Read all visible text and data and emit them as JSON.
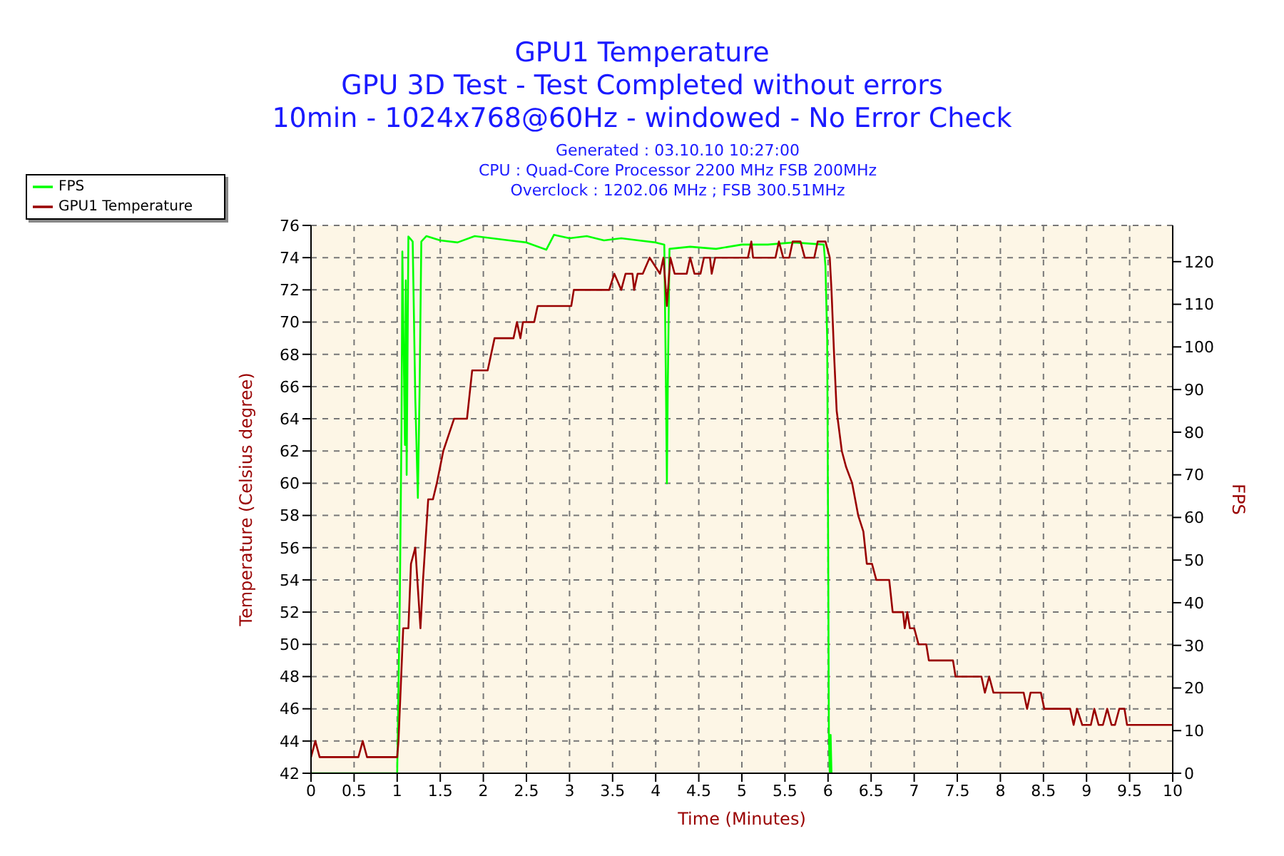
{
  "chart_data": {
    "type": "line",
    "title": "GPU1 Temperature",
    "subtitle": "GPU 3D Test - Test Completed without errors\n10min - 1024x768@60Hz - windowed - No Error Check",
    "annotations": [
      "Generated : 03.10.10 10:27:00",
      "CPU : Quad-Core Processor 2200 MHz FSB 200MHz",
      "Overclock : 1202.06 MHz ; FSB 300.51MHz"
    ],
    "xlabel": "Time (Minutes)",
    "ylabel": "Temperature (Celsius degree)",
    "y2label": "FPS",
    "xlim": [
      0,
      10
    ],
    "xticks": [
      0,
      0.5,
      1,
      1.5,
      2,
      2.5,
      3,
      3.5,
      4,
      4.5,
      5,
      5.5,
      6,
      6.5,
      7,
      7.5,
      8,
      8.5,
      9,
      9.5,
      10
    ],
    "ylim": [
      42,
      76
    ],
    "yticks": [
      42,
      44,
      46,
      48,
      50,
      52,
      54,
      56,
      58,
      60,
      62,
      64,
      66,
      68,
      70,
      72,
      74,
      76
    ],
    "y2lim": [
      0,
      128.5
    ],
    "y2ticks": [
      0,
      10,
      20,
      30,
      40,
      50,
      60,
      70,
      80,
      90,
      100,
      110,
      120
    ],
    "grid": true,
    "legend": "top left",
    "marker": "none",
    "line_style": "solid",
    "series": [
      {
        "name": "FPS",
        "color": "#00ff00",
        "axis": "y2",
        "x": [
          0,
          0.99,
          1.0,
          1.03,
          1.05,
          1.06,
          1.09,
          1.1,
          1.11,
          1.13,
          1.18,
          1.21,
          1.24,
          1.26,
          1.28,
          1.34,
          1.5,
          1.7,
          1.9,
          2.1,
          2.3,
          2.5,
          2.73,
          2.82,
          3.0,
          3.2,
          3.4,
          3.6,
          3.8,
          4.0,
          4.1,
          4.12,
          4.13,
          4.14,
          4.16,
          4.4,
          4.7,
          5.0,
          5.3,
          5.6,
          5.95,
          5.97,
          5.99,
          6.0,
          6.01,
          6.02,
          6.03,
          6.04
        ],
        "values": [
          0,
          0,
          0,
          39.8,
          80.6,
          122.4,
          77,
          115.6,
          70,
          125.9,
          124.7,
          88,
          64.6,
          90,
          124.7,
          126,
          125,
          124.5,
          126,
          125.5,
          125,
          124.5,
          122.8,
          126.3,
          125.5,
          126,
          125,
          125.5,
          125,
          124.5,
          124,
          89,
          68,
          90,
          123,
          123.5,
          123,
          124,
          124,
          124.5,
          124,
          119,
          102,
          60,
          9,
          0,
          9,
          0
        ]
      },
      {
        "name": "GPU1 Temperature",
        "color": "#990000",
        "axis": "y",
        "x": [
          0,
          0.05,
          0.1,
          0.55,
          0.6,
          0.65,
          1.0,
          1.015,
          1.07,
          1.13,
          1.16,
          1.21,
          1.27,
          1.3,
          1.36,
          1.415,
          1.46,
          1.535,
          1.66,
          1.81,
          1.87,
          2.05,
          2.13,
          2.35,
          2.39,
          2.43,
          2.46,
          2.59,
          2.63,
          3.02,
          3.05,
          3.46,
          3.52,
          3.6,
          3.65,
          3.73,
          3.75,
          3.79,
          3.85,
          3.93,
          4.05,
          4.09,
          4.13,
          4.17,
          4.22,
          4.36,
          4.4,
          4.45,
          4.52,
          4.56,
          4.63,
          4.65,
          4.69,
          5.07,
          5.11,
          5.13,
          5.39,
          5.43,
          5.48,
          5.55,
          5.59,
          5.68,
          5.73,
          5.84,
          5.88,
          5.97,
          6.02,
          6.04,
          6.07,
          6.1,
          6.16,
          6.21,
          6.28,
          6.35,
          6.41,
          6.45,
          6.51,
          6.56,
          6.71,
          6.75,
          6.87,
          6.89,
          6.92,
          6.95,
          7.0,
          7.05,
          7.14,
          7.17,
          7.45,
          7.48,
          7.78,
          7.82,
          7.87,
          7.92,
          8.27,
          8.31,
          8.35,
          8.47,
          8.51,
          8.81,
          8.85,
          8.89,
          8.95,
          9.05,
          9.09,
          9.14,
          9.19,
          9.24,
          9.29,
          9.33,
          9.38,
          9.44,
          9.47,
          10
        ],
        "values": [
          43,
          44,
          43,
          43,
          44,
          43,
          43,
          44,
          51,
          51,
          55,
          56,
          51,
          54,
          59,
          59,
          60,
          62,
          64,
          64,
          67,
          67,
          69,
          69,
          70,
          69,
          70,
          70,
          71,
          71,
          72,
          72,
          73,
          72,
          73,
          73,
          72,
          73,
          73,
          74,
          73,
          74,
          71,
          74,
          73,
          73,
          74,
          73,
          73,
          74,
          74,
          73,
          74,
          74,
          75,
          74,
          74,
          75,
          74,
          74,
          75,
          75,
          74,
          74,
          75,
          75,
          74,
          72,
          68,
          64.5,
          62,
          61,
          60,
          58,
          57,
          55,
          55,
          54,
          54,
          52,
          52,
          51,
          52,
          51,
          51,
          50,
          50,
          49,
          49,
          48,
          48,
          47,
          48,
          47,
          47,
          46,
          47,
          47,
          46,
          46,
          45,
          46,
          45,
          45,
          46,
          45,
          45,
          46,
          45,
          45,
          46,
          46,
          45,
          45
        ]
      }
    ]
  }
}
